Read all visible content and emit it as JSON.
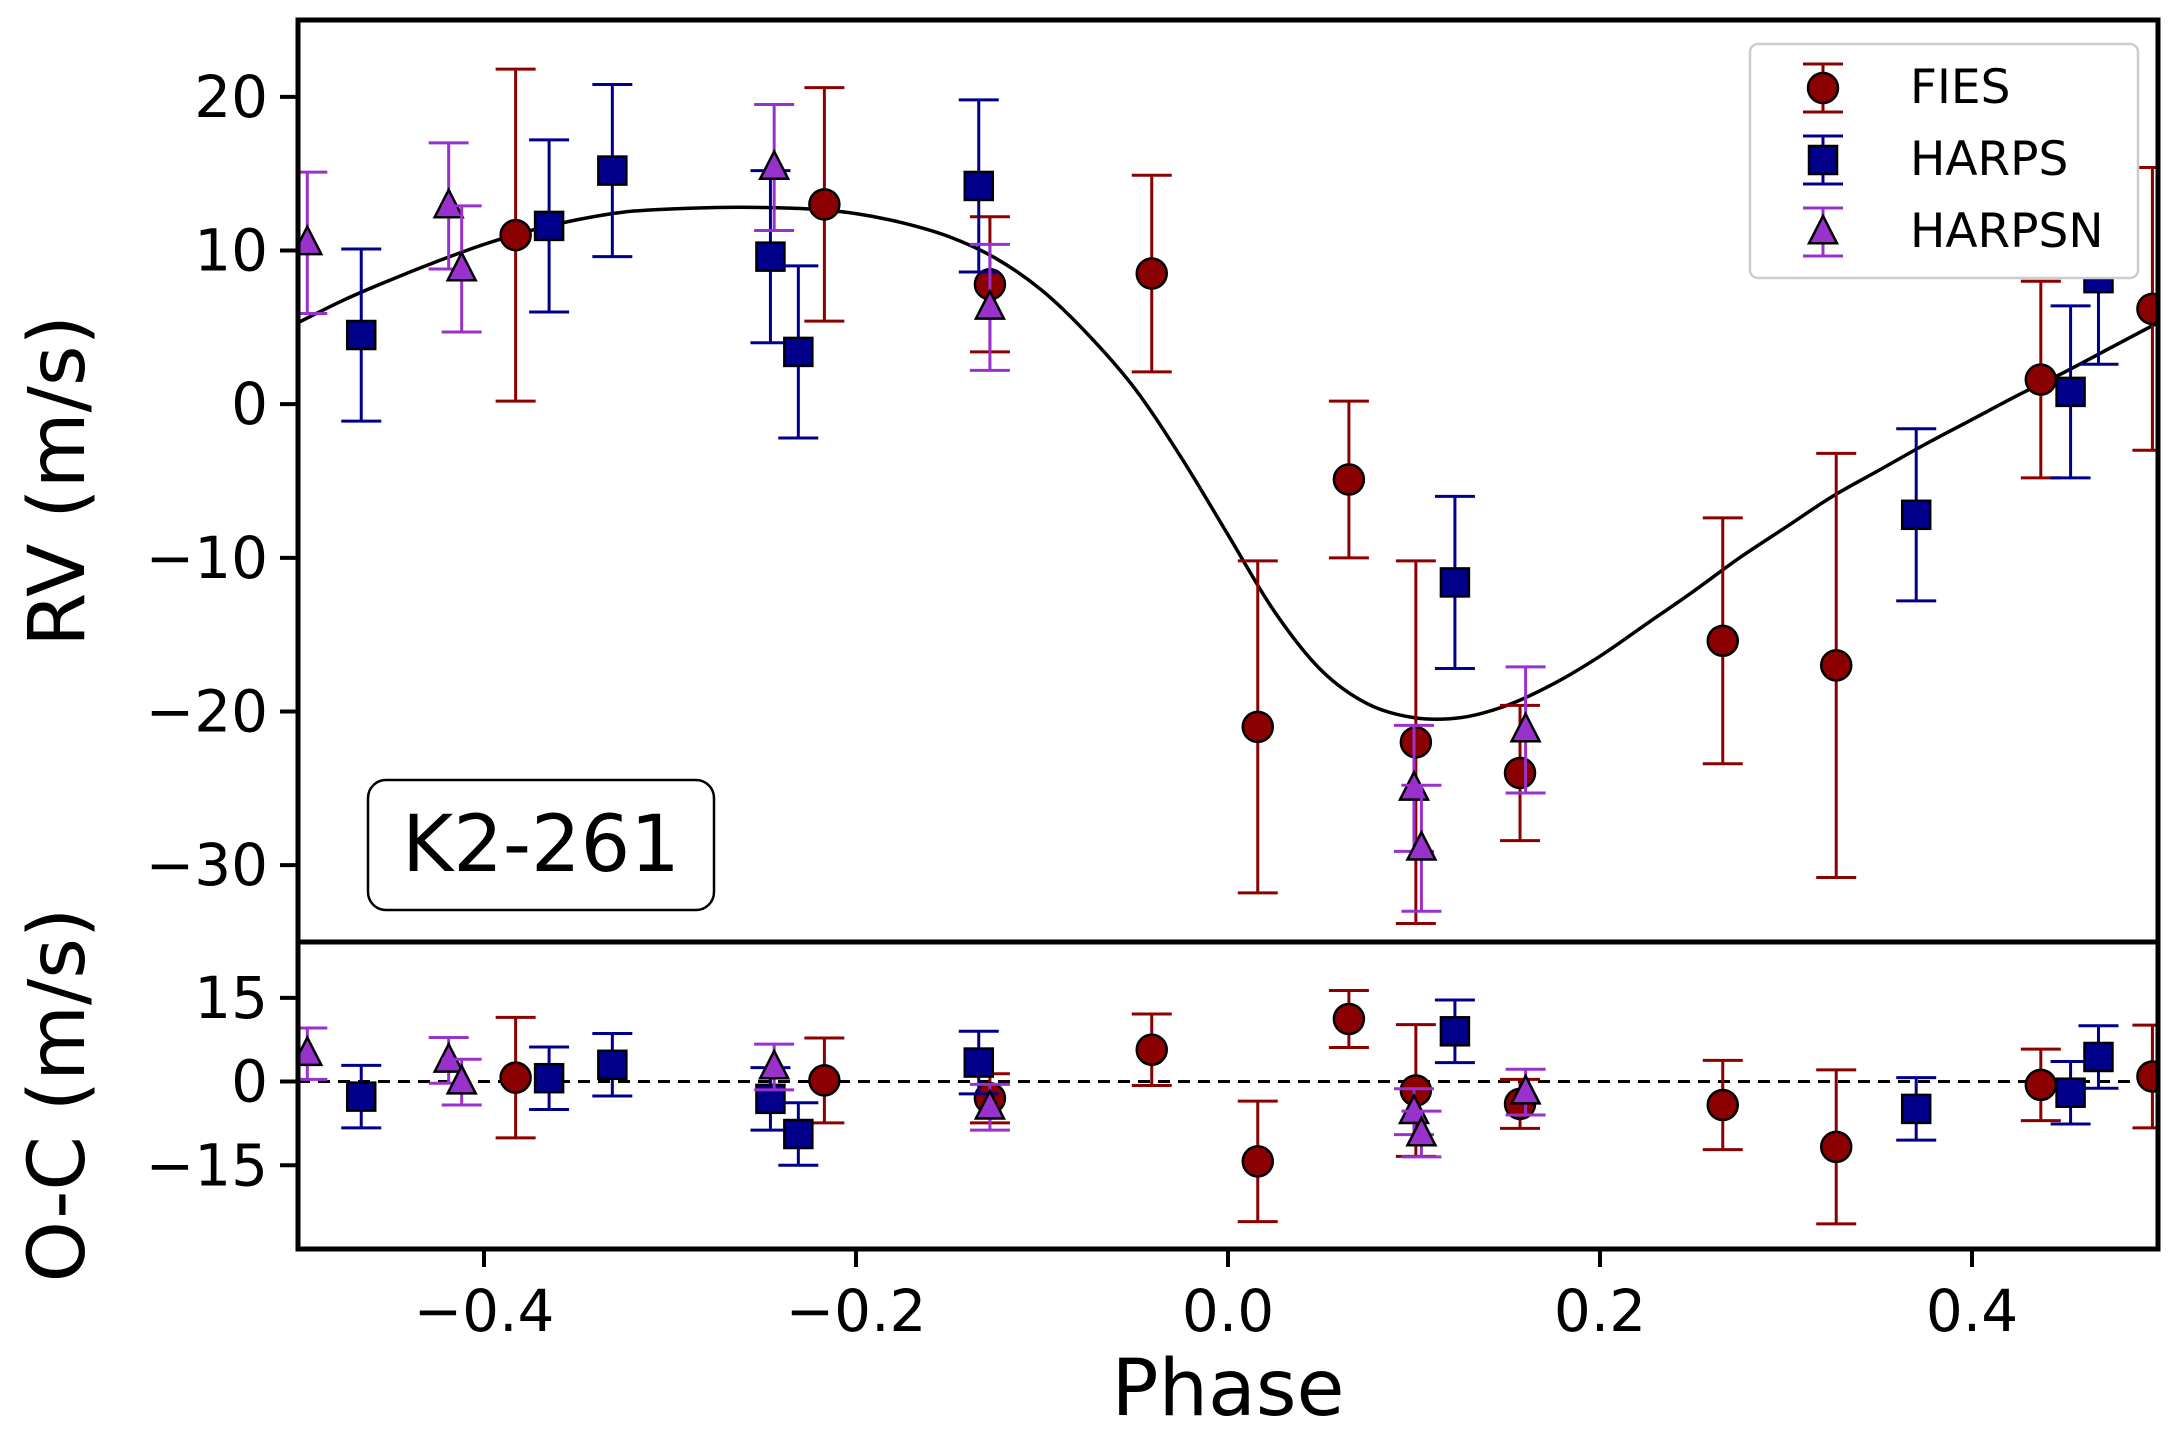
{
  "chart_data": {
    "type": "scatter",
    "title": "",
    "annotation": "K2-261",
    "xlabel": "Phase",
    "xlim": [
      -0.5,
      0.5
    ],
    "xticks": [
      -0.4,
      -0.2,
      0.0,
      0.2,
      0.4
    ],
    "xtick_labels": [
      "−0.4",
      "−0.2",
      "0.0",
      "0.2",
      "0.4"
    ],
    "legend": {
      "location": "upper right"
    },
    "top_panel": {
      "ylabel": "RV (m/s)",
      "ylim": [
        -35,
        25
      ],
      "yticks": [
        20,
        10,
        0,
        -10,
        -20,
        -30
      ],
      "ytick_labels": [
        "20",
        "10",
        "0",
        "−10",
        "−20",
        "−30"
      ]
    },
    "bottom_panel": {
      "ylabel": "O-C (m/s)",
      "ylim": [
        -30,
        25
      ],
      "yticks": [
        15,
        0,
        -15
      ],
      "ytick_labels": [
        "15",
        "0",
        "−15"
      ],
      "zero_line": "dashed"
    },
    "model": {
      "name": "RV model",
      "color": "#000000",
      "x": [
        -0.5,
        -0.475,
        -0.45,
        -0.425,
        -0.4,
        -0.375,
        -0.35,
        -0.325,
        -0.3,
        -0.275,
        -0.25,
        -0.225,
        -0.2,
        -0.175,
        -0.15,
        -0.125,
        -0.1,
        -0.075,
        -0.05,
        -0.025,
        0.0,
        0.025,
        0.05,
        0.075,
        0.1,
        0.125,
        0.15,
        0.175,
        0.2,
        0.225,
        0.25,
        0.275,
        0.3,
        0.325,
        0.35,
        0.375,
        0.4,
        0.425,
        0.45,
        0.475,
        0.5
      ],
      "y": [
        5.3,
        6.8,
        8.1,
        9.3,
        10.4,
        11.3,
        12.0,
        12.5,
        12.7,
        12.8,
        12.8,
        12.7,
        12.4,
        11.8,
        10.9,
        9.5,
        7.4,
        4.5,
        1.0,
        -3.5,
        -8.5,
        -13.5,
        -17.3,
        -19.5,
        -20.4,
        -20.4,
        -19.6,
        -18.2,
        -16.4,
        -14.3,
        -12.2,
        -10.0,
        -8.0,
        -6.0,
        -4.3,
        -2.6,
        -1.0,
        0.6,
        2.1,
        3.7,
        5.3
      ]
    },
    "series": [
      {
        "name": "FIES",
        "marker": "circle",
        "color": "#8b0000",
        "x": [
          -0.383,
          -0.217,
          -0.128,
          -0.041,
          0.016,
          0.065,
          0.101,
          0.157,
          0.266,
          0.327,
          0.437,
          0.497
        ],
        "y": [
          11.0,
          13.0,
          7.8,
          8.5,
          -21.0,
          -4.9,
          -22.0,
          -24.0,
          -15.4,
          -17.0,
          1.6,
          6.2
        ],
        "yerr": [
          10.8,
          7.6,
          4.4,
          6.4,
          10.8,
          5.1,
          11.8,
          4.4,
          8.0,
          13.8,
          6.4,
          9.2
        ],
        "residual": [
          0.7,
          0.2,
          -3.0,
          5.7,
          -14.3,
          11.2,
          -1.6,
          -4.0,
          -4.2,
          -11.7,
          -0.6,
          0.9
        ],
        "residual_err": [
          10.8,
          7.6,
          4.4,
          6.4,
          10.8,
          5.1,
          11.8,
          4.4,
          8.0,
          13.8,
          6.4,
          9.2
        ]
      },
      {
        "name": "HARPS",
        "marker": "square",
        "color": "#00008b",
        "x": [
          -0.466,
          -0.365,
          -0.331,
          -0.246,
          -0.231,
          -0.134,
          0.122,
          0.37,
          0.453,
          0.468
        ],
        "y": [
          4.5,
          11.6,
          15.2,
          9.6,
          3.4,
          14.2,
          -11.6,
          -7.2,
          0.8,
          8.2
        ],
        "yerr": [
          5.6,
          5.6,
          5.6,
          5.6,
          5.6,
          5.6,
          5.6,
          5.6,
          5.6,
          5.6
        ],
        "residual": [
          -2.7,
          0.6,
          3.0,
          -3.1,
          -9.4,
          3.4,
          9.0,
          -4.9,
          -2.0,
          4.4
        ],
        "residual_err": [
          5.6,
          5.6,
          5.6,
          5.6,
          5.6,
          5.6,
          5.6,
          5.6,
          5.6,
          5.6
        ]
      },
      {
        "name": "HARPSN",
        "marker": "triangle",
        "color": "#9932cc",
        "x": [
          -0.495,
          -0.419,
          -0.412,
          -0.244,
          -0.128,
          0.1,
          0.104,
          0.16
        ],
        "y": [
          10.5,
          12.9,
          8.8,
          15.4,
          6.3,
          -25.0,
          -28.9,
          -21.2
        ],
        "yerr": [
          4.6,
          4.1,
          4.1,
          4.1,
          4.1,
          4.1,
          4.1,
          4.1
        ],
        "residual": [
          5.0,
          3.8,
          -0.1,
          2.6,
          -4.6,
          -5.4,
          -9.4,
          -1.9
        ],
        "residual_err": [
          4.6,
          4.1,
          4.1,
          4.1,
          4.1,
          4.1,
          4.1,
          4.1
        ]
      }
    ]
  }
}
